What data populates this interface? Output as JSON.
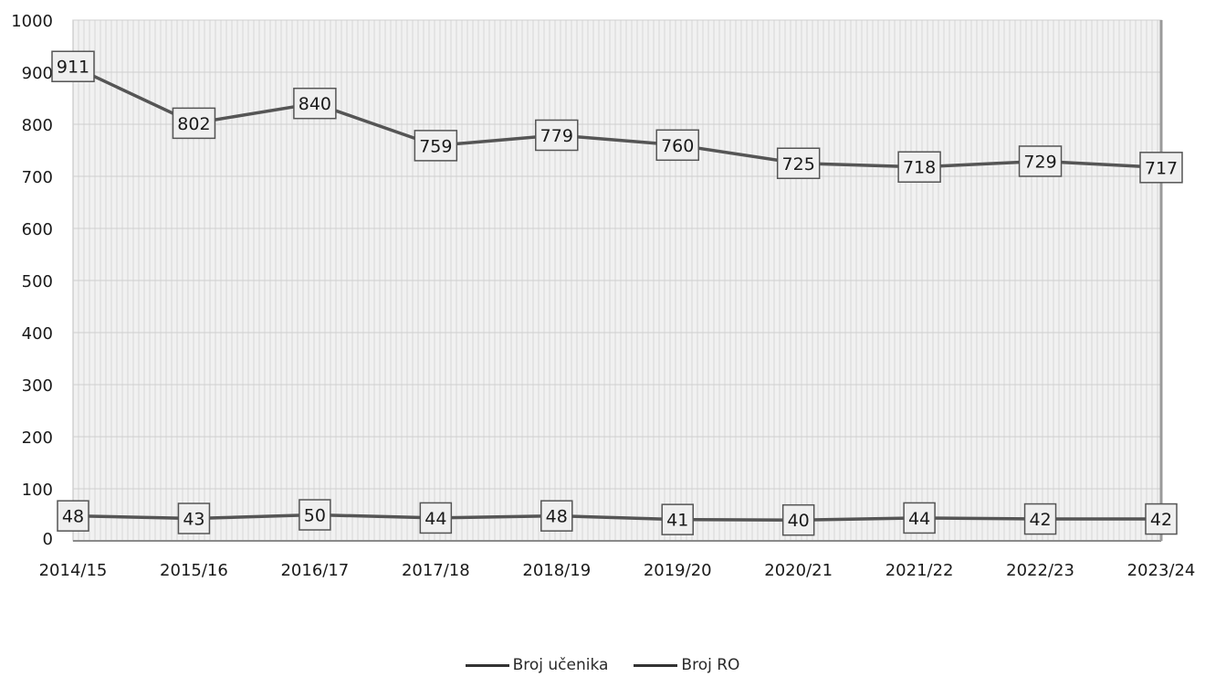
{
  "chart_data": {
    "type": "line",
    "categories": [
      "2014/15",
      "2015/16",
      "2016/17",
      "2017/18",
      "2018/19",
      "2019/20",
      "2020/21",
      "2021/22",
      "2022/23",
      "2023/24"
    ],
    "series": [
      {
        "name": "Broj učenika",
        "values": [
          911,
          802,
          840,
          759,
          779,
          760,
          725,
          718,
          729,
          717
        ],
        "color": "#555555"
      },
      {
        "name": "Broj RO",
        "values": [
          48,
          43,
          50,
          44,
          48,
          41,
          40,
          44,
          42,
          42
        ],
        "color": "#555555"
      }
    ],
    "y_tick_labels": [
      "0",
      "100",
      "200",
      "300",
      "400",
      "500",
      "600",
      "700",
      "800",
      "900",
      "1000"
    ],
    "ylim": [
      0,
      1000
    ],
    "ytick_step": 100,
    "grid": true,
    "data_labels": true,
    "legend_position": "bottom-center",
    "colors": {
      "line": "#555555",
      "grid": "#d6d6d6",
      "plot_background": "#f1f1f1",
      "label_background": "#efefef",
      "label_border": "#555555",
      "text": "#1a1a1a",
      "legend_swatch": "#333333"
    }
  }
}
